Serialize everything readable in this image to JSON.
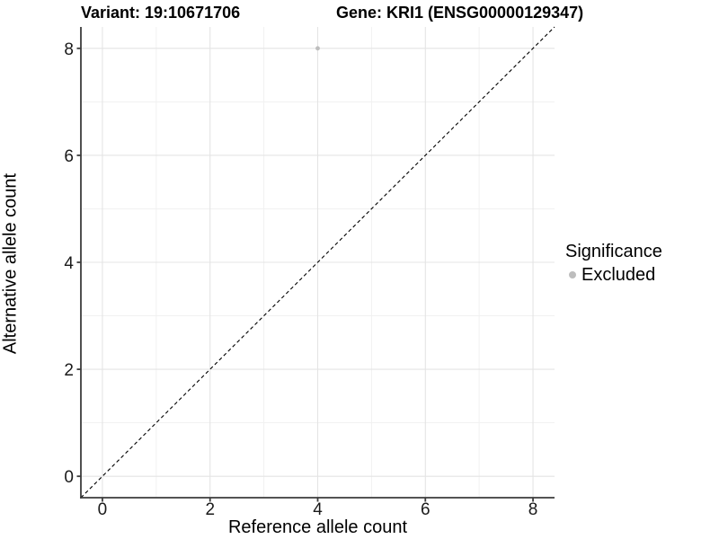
{
  "header": {
    "title_left": "Variant: 19:10671706",
    "title_right": "Gene: KRI1 (ENSG00000129347)"
  },
  "chart_data": {
    "type": "scatter",
    "title_left": "Variant: 19:10671706",
    "title_right": "Gene: KRI1 (ENSG00000129347)",
    "xlabel": "Reference allele count",
    "ylabel": "Alternative allele count",
    "xlim": [
      -0.4,
      8.4
    ],
    "ylim": [
      -0.4,
      8.4
    ],
    "x_ticks": [
      0,
      2,
      4,
      6,
      8
    ],
    "y_ticks": [
      0,
      2,
      4,
      6,
      8
    ],
    "x_minor_ticks": [
      1,
      3,
      5,
      7
    ],
    "y_minor_ticks": [
      1,
      3,
      5,
      7
    ],
    "grid": true,
    "identity_line": {
      "slope": 1,
      "intercept": 0,
      "style": "dashed",
      "color": "#000000"
    },
    "series": [
      {
        "name": "Excluded",
        "color": "#BDBDBD",
        "points": [
          {
            "x": 4,
            "y": 8
          }
        ]
      }
    ],
    "legend": {
      "title": "Significance",
      "position": "right",
      "entries": [
        {
          "label": "Excluded",
          "color": "#BDBDBD"
        }
      ]
    },
    "colors": {
      "grid_major": "#E4E4E4",
      "grid_minor": "#F1F1F1",
      "axis_line": "#3C3C3C",
      "tick_label": "#1A1A1A",
      "point": "#BDBDBD"
    }
  }
}
